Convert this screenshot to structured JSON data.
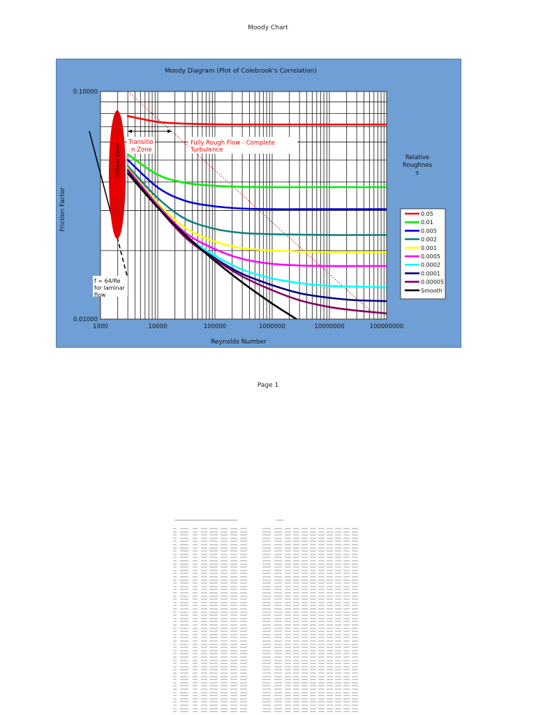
{
  "page": {
    "title": "Moody Chart",
    "footer": "Page 1"
  },
  "chart_data": {
    "type": "line",
    "title": "Moody Diagram (Plot of Colebrook's Correlation)",
    "xlabel": "Reynolds Number",
    "ylabel": "Friction Factor",
    "xscale": "log",
    "yscale": "log",
    "xlim": [
      1000,
      100000000
    ],
    "ylim": [
      0.01,
      0.1
    ],
    "x_tick_labels": [
      "1000",
      "10000",
      "100000",
      "1000000",
      "10000000",
      "100000000"
    ],
    "y_tick_labels": [
      "0.10000",
      "0.01000"
    ],
    "grid": true,
    "legend_title": "Relative Roughness",
    "legend_title_display": [
      "Relative",
      "Roughnes",
      "s"
    ],
    "legend_position": "right",
    "x": [
      3000,
      10000,
      30000,
      100000,
      300000,
      1000000,
      3000000,
      10000000,
      30000000,
      100000000
    ],
    "series": [
      {
        "name": "0.05",
        "color": "#ff0000",
        "values": [
          0.078,
          0.0735,
          0.0722,
          0.0717,
          0.0716,
          0.0716,
          0.0716,
          0.0716,
          0.0716,
          0.0716
        ]
      },
      {
        "name": "0.01",
        "color": "#00ee00",
        "values": [
          0.053,
          0.0431,
          0.0397,
          0.0385,
          0.0381,
          0.038,
          0.038,
          0.038,
          0.038,
          0.038
        ]
      },
      {
        "name": "0.005",
        "color": "#0000dd",
        "values": [
          0.05,
          0.0379,
          0.0331,
          0.0313,
          0.0306,
          0.0304,
          0.0304,
          0.0304,
          0.0304,
          0.0304
        ]
      },
      {
        "name": "0.002",
        "color": "#108080",
        "values": [
          0.047,
          0.034,
          0.0276,
          0.0249,
          0.0239,
          0.0236,
          0.0235,
          0.0234,
          0.0234,
          0.0234
        ]
      },
      {
        "name": "0.001",
        "color": "#ffff00",
        "values": [
          0.046,
          0.0324,
          0.0252,
          0.0219,
          0.0205,
          0.02,
          0.0198,
          0.0197,
          0.0197,
          0.0197
        ]
      },
      {
        "name": "0.0005",
        "color": "#ff00ff",
        "values": [
          0.0455,
          0.0317,
          0.024,
          0.0203,
          0.0184,
          0.0175,
          0.0172,
          0.0171,
          0.0171,
          0.0171
        ]
      },
      {
        "name": "0.0002",
        "color": "#00ffff",
        "values": [
          0.045,
          0.0312,
          0.0233,
          0.019,
          0.0165,
          0.0151,
          0.0144,
          0.014,
          0.0139,
          0.0138
        ]
      },
      {
        "name": "0.0001",
        "color": "#000080",
        "values": [
          0.0449,
          0.0311,
          0.023,
          0.0185,
          0.0158,
          0.0141,
          0.013,
          0.0124,
          0.0121,
          0.012
        ]
      },
      {
        "name": "0.00005",
        "color": "#800060",
        "values": [
          0.0448,
          0.031,
          0.0229,
          0.0183,
          0.0154,
          0.0134,
          0.0121,
          0.0113,
          0.0109,
          0.0106
        ]
      },
      {
        "name": "Smooth",
        "legend_display": "Smooth",
        "color": "#000000",
        "values": [
          0.0437,
          0.0309,
          0.0235,
          0.018,
          0.0145,
          0.0117,
          0.0098,
          null,
          null,
          null
        ]
      }
    ],
    "laminar_line": {
      "formula": "f = 64/Re",
      "x": [
        600,
        3000
      ],
      "values": [
        0.1067,
        0.0213
      ]
    },
    "fully_rough_boundary": {
      "style": "dashed",
      "color": "#ff0000",
      "x": [
        3000,
        60000000
      ],
      "values": [
        0.1,
        0.0105
      ]
    },
    "annotations": [
      {
        "text": "Critical Zone",
        "type": "ellipse",
        "color": "#ff0000",
        "center_re": 2000,
        "f_range": [
          0.024,
          0.08
        ]
      },
      {
        "text": "Transitio n Zone",
        "lines": [
          "Transitio",
          "n Zone"
        ],
        "color": "#ff0000"
      },
      {
        "text": "Fully Rough Flow - Complete Turbulence",
        "lines": [
          "Fully Rough Flow - Complete",
          "Turbulence"
        ],
        "color": "#ff0000"
      },
      {
        "text": "f = 64/Re for laminar flow",
        "lines": [
          "f = 64/Re",
          "for laminar",
          "flow"
        ],
        "color": "#000000"
      }
    ]
  },
  "table_thumbnail": {
    "rows": 58
  }
}
